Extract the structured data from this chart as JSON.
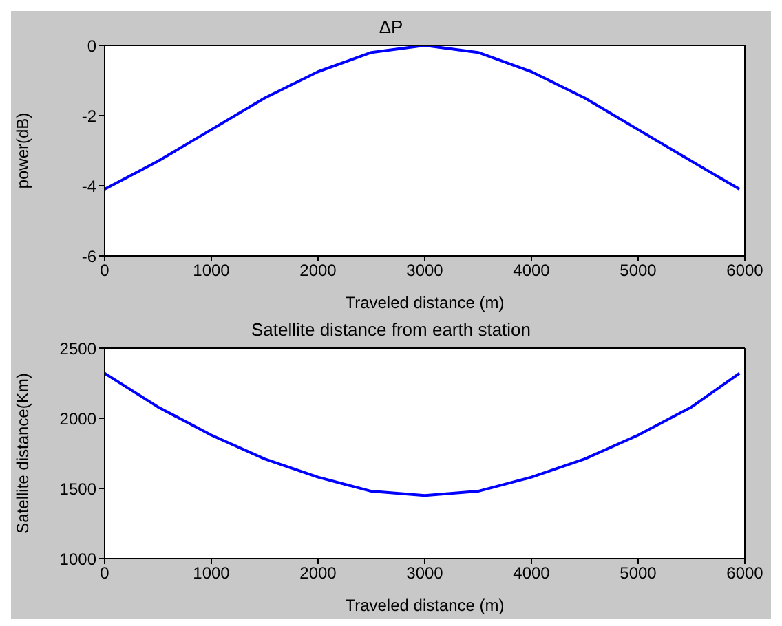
{
  "chart_data": [
    {
      "type": "line",
      "title": "ΔP",
      "xlabel": "Traveled distance (m)",
      "ylabel": "power(dB)",
      "x": [
        0,
        500,
        1000,
        1500,
        2000,
        2500,
        3000,
        3500,
        4000,
        4500,
        5000,
        5500,
        5950
      ],
      "series": [
        {
          "color": "#0000ff",
          "values": [
            -4.1,
            -3.3,
            -2.4,
            -1.5,
            -0.75,
            -0.2,
            0,
            -0.2,
            -0.75,
            -1.5,
            -2.4,
            -3.3,
            -4.1
          ]
        }
      ],
      "xlim": [
        0,
        6000
      ],
      "xticks": [
        0,
        1000,
        2000,
        3000,
        4000,
        5000,
        6000
      ],
      "ylim": [
        -6,
        0
      ],
      "yticks": [
        -6,
        -4,
        -2,
        0
      ],
      "legend": false,
      "marker": "none",
      "line_style": "solid"
    },
    {
      "type": "line",
      "title": "Satellite distance from earth station",
      "xlabel": "Traveled distance (m)",
      "ylabel": "Satellite distance(Km)",
      "x": [
        0,
        500,
        1000,
        1500,
        2000,
        2500,
        3000,
        3500,
        4000,
        4500,
        5000,
        5500,
        5950
      ],
      "series": [
        {
          "color": "#0000ff",
          "values": [
            2320,
            2080,
            1880,
            1710,
            1580,
            1480,
            1450,
            1480,
            1580,
            1710,
            1880,
            2080,
            2320
          ]
        }
      ],
      "xlim": [
        0,
        6000
      ],
      "xticks": [
        0,
        1000,
        2000,
        3000,
        4000,
        5000,
        6000
      ],
      "ylim": [
        1000,
        2500
      ],
      "yticks": [
        1000,
        1500,
        2000,
        2500
      ],
      "legend": false,
      "marker": "none",
      "line_style": "solid"
    }
  ]
}
